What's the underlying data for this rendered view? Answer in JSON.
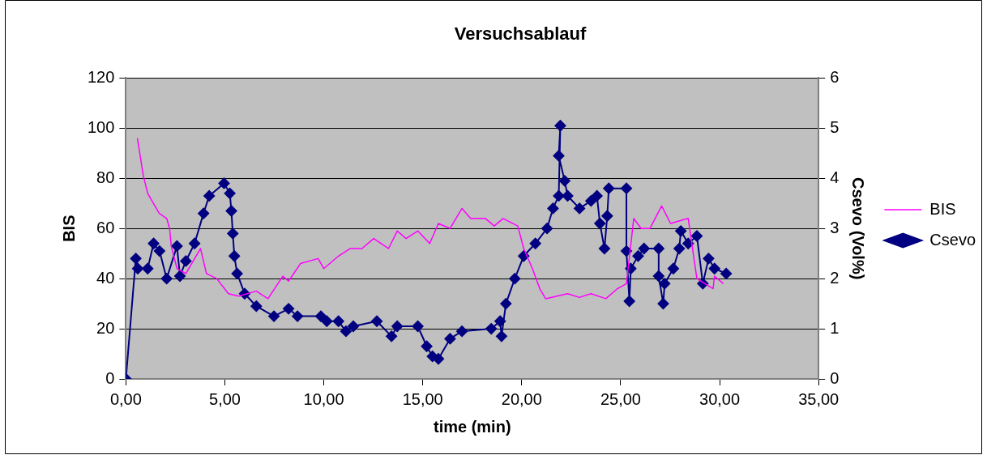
{
  "chart_data": {
    "type": "line",
    "title": "Versuchsablauf",
    "xlabel": "time (min)",
    "ylabel": "BIS",
    "y2label": "Csevo (Vol%)",
    "xlim": [
      0,
      35
    ],
    "xticks": [
      {
        "value": 0,
        "label": "0,00"
      },
      {
        "value": 5,
        "label": "5,00"
      },
      {
        "value": 10,
        "label": "10,00"
      },
      {
        "value": 15,
        "label": "15,00"
      },
      {
        "value": 20,
        "label": "20,00"
      },
      {
        "value": 25,
        "label": "25,00"
      },
      {
        "value": 30,
        "label": "30,00"
      },
      {
        "value": 35,
        "label": "35,00"
      }
    ],
    "ylim": [
      0,
      120
    ],
    "yticks": [
      0,
      20,
      40,
      60,
      80,
      100,
      120
    ],
    "y2lim": [
      0,
      6
    ],
    "y2ticks": [
      0,
      1,
      2,
      3,
      4,
      5,
      6
    ],
    "grid": "y",
    "legend": "right",
    "series": [
      {
        "name": "BIS",
        "color": "#ff00ff",
        "marker": "none",
        "x": [
          0.58,
          0.88,
          1.1,
          1.39,
          1.69,
          2.06,
          2.21,
          2.29,
          2.58,
          3.03,
          3.77,
          4.07,
          4.59,
          5.18,
          5.7,
          6.59,
          7.18,
          7.93,
          8.22,
          8.82,
          9.71,
          10.0,
          10.74,
          11.34,
          11.93,
          12.52,
          13.27,
          13.71,
          14.16,
          14.75,
          15.35,
          15.79,
          16.38,
          16.98,
          17.42,
          18.17,
          18.61,
          19.06,
          19.8,
          20.1,
          20.54,
          20.91,
          21.21,
          22.32,
          22.92,
          23.5,
          24.25,
          24.84,
          25.29,
          25.66,
          26.03,
          26.48,
          27.07,
          27.52,
          28.41,
          28.85,
          29.67,
          29.74,
          30.19
        ],
        "values": [
          96,
          81,
          74,
          70,
          66,
          64,
          60,
          53,
          44,
          42,
          52,
          42,
          40,
          34,
          33,
          35,
          32,
          41,
          39,
          46,
          48,
          44,
          49,
          52,
          52,
          56,
          52,
          59,
          56,
          59,
          54,
          62,
          60,
          68,
          64,
          64,
          61,
          64,
          61,
          52,
          44,
          36,
          32,
          34,
          32.5,
          34,
          32,
          36,
          38,
          64,
          60,
          60,
          69,
          62,
          64,
          40,
          36,
          41,
          38
        ]
      },
      {
        "name": "Csevo",
        "color": "#000080",
        "axis": "y2",
        "marker": "diamond",
        "x": [
          0,
          0.5,
          0.6,
          1.1,
          1.4,
          1.7,
          2.06,
          2.58,
          2.73,
          3.03,
          3.47,
          3.92,
          4.21,
          4.96,
          5.25,
          5.33,
          5.4,
          5.48,
          5.62,
          6.0,
          6.59,
          7.48,
          8.22,
          8.67,
          9.85,
          10.15,
          10.74,
          11.12,
          11.49,
          12.68,
          13.42,
          13.71,
          14.75,
          15.2,
          15.49,
          15.79,
          16.38,
          16.98,
          18.46,
          18.91,
          18.98,
          19.2,
          19.65,
          20.1,
          20.69,
          21.28,
          21.58,
          21.87,
          21.95,
          21.87,
          22.17,
          22.32,
          22.92,
          23.5,
          23.8,
          23.95,
          24.18,
          24.32,
          24.4,
          25.29,
          25.29,
          25.44,
          25.51,
          25.88,
          26.18,
          26.92,
          26.92,
          27.15,
          27.22,
          27.66,
          27.96,
          28.04,
          28.41,
          28.85,
          29.15,
          29.44,
          29.74,
          30.33
        ],
        "values": [
          0,
          2.4,
          2.2,
          2.2,
          2.7,
          2.55,
          2.0,
          2.65,
          2.05,
          2.35,
          2.7,
          3.3,
          3.65,
          3.9,
          3.7,
          3.35,
          2.9,
          2.45,
          2.1,
          1.7,
          1.45,
          1.25,
          1.4,
          1.25,
          1.25,
          1.15,
          1.15,
          0.95,
          1.05,
          1.15,
          0.85,
          1.05,
          1.05,
          0.65,
          0.45,
          0.4,
          0.8,
          0.95,
          1.0,
          1.15,
          0.85,
          1.5,
          2.0,
          2.45,
          2.7,
          3.0,
          3.4,
          3.65,
          5.05,
          4.45,
          3.95,
          3.65,
          3.4,
          3.55,
          3.65,
          3.1,
          2.6,
          3.25,
          3.8,
          3.8,
          2.55,
          1.55,
          2.2,
          2.45,
          2.6,
          2.6,
          2.05,
          1.5,
          1.9,
          2.2,
          2.6,
          2.95,
          2.7,
          2.85,
          1.9,
          2.4,
          2.2,
          2.1
        ]
      }
    ]
  }
}
